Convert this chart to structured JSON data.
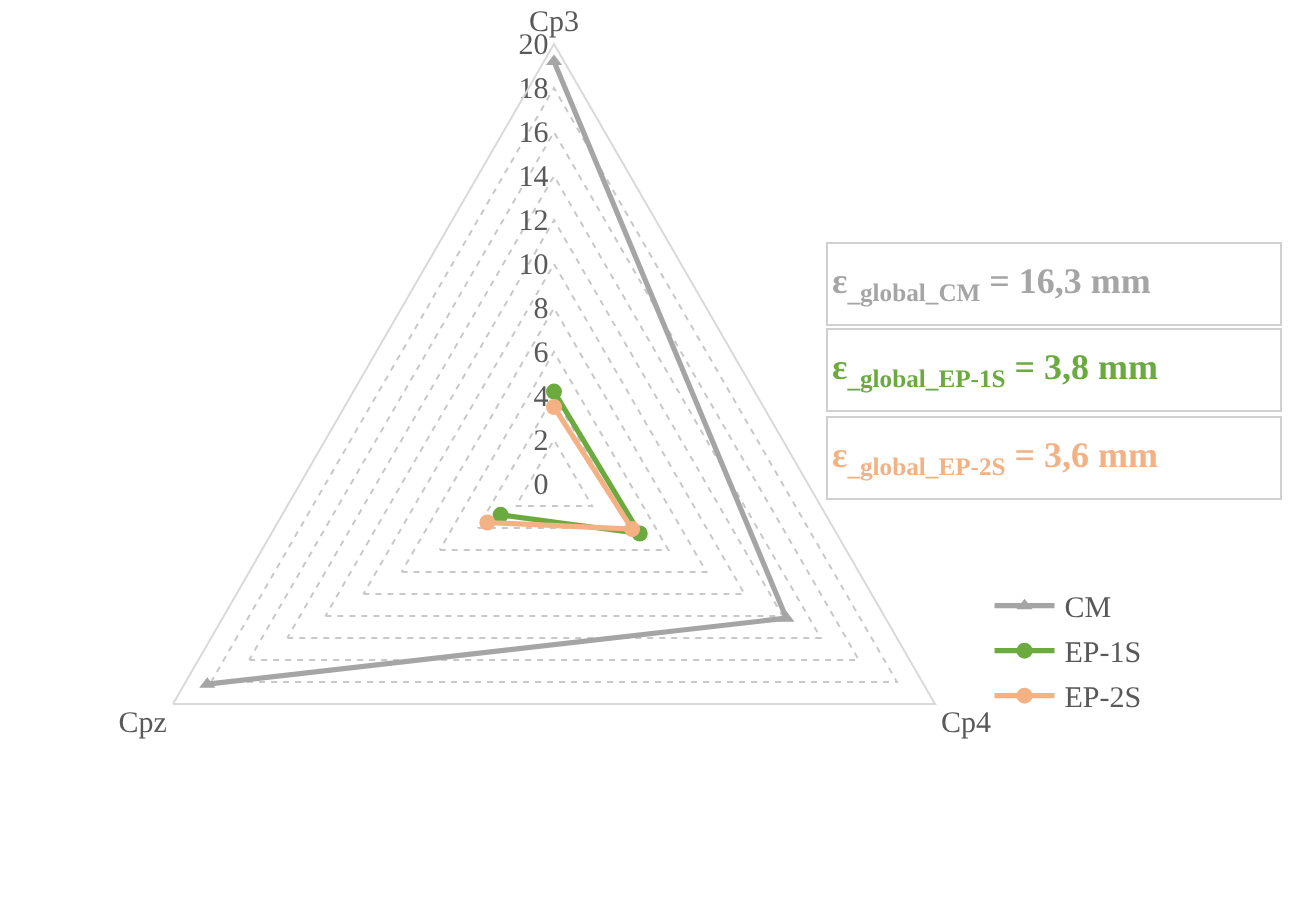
{
  "chart_data": {
    "type": "radar",
    "categories": [
      "Cp3",
      "Cp4",
      "Cpz"
    ],
    "series": [
      {
        "name": "CM",
        "color": "#a5a5a5",
        "marker": "triangle",
        "values": [
          19.2,
          12.2,
          18.2
        ]
      },
      {
        "name": "EP-1S",
        "color": "#6aaa3f",
        "marker": "circle",
        "values": [
          4.2,
          4.5,
          2.8
        ]
      },
      {
        "name": "EP-2S",
        "color": "#f4b183",
        "marker": "circle",
        "values": [
          3.5,
          4.1,
          3.5
        ]
      }
    ],
    "ylim": [
      0,
      20
    ],
    "yticks": [
      0,
      2,
      4,
      6,
      8,
      10,
      12,
      14,
      16,
      18,
      20
    ],
    "grid": true,
    "legend": "right",
    "line_style": "solid",
    "annotations": [
      "ε$_{_global_CM}$ = 16,3 mm",
      "ε$_{_global_EP-1S}$ = 3,8 mm",
      "ε$_{_global_EP-2S}$ = 3,6 mm"
    ]
  }
}
